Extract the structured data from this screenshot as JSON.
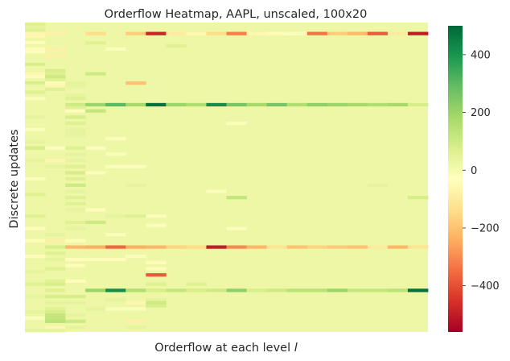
{
  "chart_data": {
    "type": "heatmap",
    "title": "Orderflow Heatmap, AAPL, unscaled, 100x20",
    "xlabel_text": "Orderflow at each level ",
    "xlabel_var": "l",
    "ylabel": "Discrete updates",
    "x_ticks_visible": false,
    "y_ticks_visible": false,
    "grid": false,
    "colormap": "RdYlGn",
    "colorbar": {
      "ticks": [
        400,
        200,
        0,
        -200,
        -400
      ],
      "tick_labels": [
        "400",
        "200",
        "0",
        "−200",
        "−400"
      ],
      "vmin": -560,
      "vmax": 500,
      "position": "right"
    },
    "grid_size": {
      "rows": 100,
      "cols": 20
    },
    "background_value": 20,
    "cells": [
      [
        0,
        0,
        60
      ],
      [
        1,
        0,
        40
      ],
      [
        2,
        0,
        60
      ],
      [
        3,
        0,
        -60
      ],
      [
        4,
        0,
        -60
      ],
      [
        5,
        0,
        20
      ],
      [
        6,
        0,
        -40
      ],
      [
        7,
        0,
        20
      ],
      [
        8,
        0,
        -40
      ],
      [
        9,
        0,
        -20
      ],
      [
        10,
        0,
        20
      ],
      [
        11,
        0,
        20
      ],
      [
        12,
        0,
        20
      ],
      [
        13,
        0,
        80
      ],
      [
        14,
        0,
        20
      ],
      [
        15,
        0,
        20
      ],
      [
        16,
        0,
        -60
      ],
      [
        17,
        0,
        -20
      ],
      [
        18,
        0,
        20
      ],
      [
        19,
        0,
        80
      ],
      [
        20,
        0,
        20
      ],
      [
        21,
        0,
        20
      ],
      [
        22,
        0,
        60
      ],
      [
        23,
        0,
        20
      ],
      [
        24,
        0,
        -20
      ],
      [
        30,
        0,
        40
      ],
      [
        34,
        0,
        -20
      ],
      [
        38,
        0,
        40
      ],
      [
        40,
        0,
        80
      ],
      [
        44,
        0,
        40
      ],
      [
        50,
        0,
        -20
      ],
      [
        55,
        0,
        60
      ],
      [
        58,
        0,
        20
      ],
      [
        62,
        0,
        60
      ],
      [
        66,
        0,
        -40
      ],
      [
        68,
        0,
        20
      ],
      [
        70,
        0,
        -40
      ],
      [
        72,
        0,
        20
      ],
      [
        75,
        0,
        -40
      ],
      [
        77,
        0,
        20
      ],
      [
        80,
        0,
        40
      ],
      [
        82,
        0,
        20
      ],
      [
        84,
        0,
        60
      ],
      [
        86,
        0,
        20
      ],
      [
        88,
        0,
        40
      ],
      [
        90,
        0,
        20
      ],
      [
        93,
        0,
        40
      ],
      [
        95,
        0,
        -20
      ],
      [
        97,
        0,
        20
      ],
      [
        99,
        0,
        40
      ],
      [
        3,
        1,
        -80
      ],
      [
        8,
        1,
        -80
      ],
      [
        10,
        1,
        -80
      ],
      [
        13,
        1,
        20
      ],
      [
        15,
        1,
        80
      ],
      [
        16,
        1,
        60
      ],
      [
        17,
        1,
        100
      ],
      [
        18,
        1,
        60
      ],
      [
        19,
        1,
        -20
      ],
      [
        20,
        1,
        -60
      ],
      [
        21,
        1,
        60
      ],
      [
        40,
        1,
        -20
      ],
      [
        44,
        1,
        -60
      ],
      [
        46,
        1,
        40
      ],
      [
        68,
        1,
        40
      ],
      [
        70,
        1,
        -80
      ],
      [
        72,
        1,
        80
      ],
      [
        74,
        1,
        60
      ],
      [
        76,
        1,
        40
      ],
      [
        79,
        1,
        60
      ],
      [
        81,
        1,
        20
      ],
      [
        83,
        1,
        60
      ],
      [
        84,
        1,
        80
      ],
      [
        86,
        1,
        60
      ],
      [
        88,
        1,
        80
      ],
      [
        90,
        1,
        40
      ],
      [
        92,
        1,
        60
      ],
      [
        93,
        1,
        80
      ],
      [
        94,
        1,
        120
      ],
      [
        95,
        1,
        120
      ],
      [
        96,
        1,
        140
      ],
      [
        98,
        1,
        -60
      ],
      [
        99,
        1,
        40
      ],
      [
        19,
        2,
        40
      ],
      [
        20,
        2,
        40
      ],
      [
        21,
        2,
        20
      ],
      [
        23,
        2,
        40
      ],
      [
        24,
        2,
        60
      ],
      [
        26,
        2,
        100
      ],
      [
        27,
        2,
        60
      ],
      [
        28,
        2,
        -40
      ],
      [
        30,
        2,
        80
      ],
      [
        32,
        2,
        60
      ],
      [
        34,
        2,
        40
      ],
      [
        35,
        2,
        40
      ],
      [
        36,
        2,
        40
      ],
      [
        40,
        2,
        60
      ],
      [
        42,
        2,
        40
      ],
      [
        44,
        2,
        40
      ],
      [
        46,
        2,
        60
      ],
      [
        48,
        2,
        80
      ],
      [
        50,
        2,
        60
      ],
      [
        52,
        2,
        100
      ],
      [
        54,
        2,
        40
      ],
      [
        56,
        2,
        60
      ],
      [
        58,
        2,
        60
      ],
      [
        60,
        2,
        40
      ],
      [
        62,
        2,
        20
      ],
      [
        64,
        2,
        60
      ],
      [
        66,
        2,
        40
      ],
      [
        70,
        2,
        -40
      ],
      [
        72,
        2,
        -220
      ],
      [
        74,
        2,
        20
      ],
      [
        76,
        2,
        -40
      ],
      [
        78,
        2,
        -40
      ],
      [
        83,
        2,
        -40
      ],
      [
        86,
        2,
        20
      ],
      [
        88,
        2,
        80
      ],
      [
        90,
        2,
        40
      ],
      [
        92,
        2,
        20
      ],
      [
        94,
        2,
        40
      ],
      [
        96,
        2,
        100
      ],
      [
        98,
        2,
        40
      ],
      [
        3,
        3,
        -140
      ],
      [
        6,
        3,
        60
      ],
      [
        16,
        3,
        100
      ],
      [
        26,
        3,
        200
      ],
      [
        28,
        3,
        120
      ],
      [
        40,
        3,
        -20
      ],
      [
        48,
        3,
        -20
      ],
      [
        60,
        3,
        -40
      ],
      [
        64,
        3,
        100
      ],
      [
        72,
        3,
        -240
      ],
      [
        76,
        3,
        -20
      ],
      [
        86,
        3,
        200
      ],
      [
        92,
        3,
        40
      ],
      [
        94,
        3,
        20
      ],
      [
        8,
        4,
        -20
      ],
      [
        26,
        4,
        300
      ],
      [
        32,
        4,
        20
      ],
      [
        37,
        4,
        -20
      ],
      [
        42,
        4,
        -20
      ],
      [
        46,
        4,
        -20
      ],
      [
        60,
        4,
        20
      ],
      [
        62,
        4,
        40
      ],
      [
        68,
        4,
        -20
      ],
      [
        72,
        4,
        -360
      ],
      [
        76,
        4,
        -40
      ],
      [
        86,
        4,
        420
      ],
      [
        89,
        4,
        40
      ],
      [
        92,
        4,
        -20
      ],
      [
        3,
        5,
        -180
      ],
      [
        19,
        5,
        -200
      ],
      [
        26,
        5,
        180
      ],
      [
        46,
        5,
        -20
      ],
      [
        48,
        5,
        20
      ],
      [
        52,
        5,
        40
      ],
      [
        58,
        5,
        20
      ],
      [
        62,
        5,
        60
      ],
      [
        72,
        5,
        -240
      ],
      [
        75,
        5,
        -20
      ],
      [
        86,
        5,
        160
      ],
      [
        90,
        5,
        -60
      ],
      [
        92,
        5,
        -20
      ],
      [
        94,
        5,
        20
      ],
      [
        96,
        5,
        -80
      ],
      [
        98,
        5,
        40
      ],
      [
        3,
        6,
        -480
      ],
      [
        26,
        6,
        480
      ],
      [
        46,
        6,
        20
      ],
      [
        62,
        6,
        -20
      ],
      [
        65,
        6,
        -20
      ],
      [
        72,
        6,
        -220
      ],
      [
        77,
        6,
        -40
      ],
      [
        79,
        6,
        -40
      ],
      [
        81,
        6,
        -380
      ],
      [
        84,
        6,
        60
      ],
      [
        86,
        6,
        80
      ],
      [
        89,
        6,
        40
      ],
      [
        90,
        6,
        100
      ],
      [
        91,
        6,
        80
      ],
      [
        94,
        6,
        20
      ],
      [
        3,
        7,
        -100
      ],
      [
        7,
        7,
        60
      ],
      [
        26,
        7,
        200
      ],
      [
        42,
        7,
        20
      ],
      [
        48,
        7,
        20
      ],
      [
        72,
        7,
        -160
      ],
      [
        86,
        7,
        120
      ],
      [
        94,
        7,
        20
      ],
      [
        3,
        8,
        -60
      ],
      [
        26,
        8,
        160
      ],
      [
        46,
        8,
        20
      ],
      [
        52,
        8,
        20
      ],
      [
        72,
        8,
        -140
      ],
      [
        84,
        8,
        60
      ],
      [
        86,
        8,
        80
      ],
      [
        3,
        9,
        -140
      ],
      [
        26,
        9,
        420
      ],
      [
        52,
        9,
        20
      ],
      [
        54,
        9,
        -20
      ],
      [
        60,
        9,
        20
      ],
      [
        68,
        9,
        20
      ],
      [
        72,
        9,
        -500
      ],
      [
        86,
        9,
        100
      ],
      [
        3,
        10,
        -320
      ],
      [
        26,
        10,
        260
      ],
      [
        32,
        10,
        -20
      ],
      [
        48,
        10,
        20
      ],
      [
        56,
        10,
        120
      ],
      [
        62,
        10,
        20
      ],
      [
        66,
        10,
        -20
      ],
      [
        72,
        10,
        -300
      ],
      [
        86,
        10,
        220
      ],
      [
        3,
        11,
        -60
      ],
      [
        26,
        11,
        180
      ],
      [
        42,
        11,
        20
      ],
      [
        60,
        11,
        20
      ],
      [
        68,
        11,
        20
      ],
      [
        72,
        11,
        -220
      ],
      [
        86,
        11,
        80
      ],
      [
        90,
        11,
        20
      ],
      [
        3,
        12,
        -40
      ],
      [
        26,
        12,
        260
      ],
      [
        38,
        12,
        20
      ],
      [
        72,
        12,
        -120
      ],
      [
        86,
        12,
        100
      ],
      [
        94,
        12,
        20
      ],
      [
        3,
        13,
        -20
      ],
      [
        26,
        13,
        160
      ],
      [
        44,
        13,
        20
      ],
      [
        72,
        13,
        -200
      ],
      [
        86,
        13,
        140
      ],
      [
        3,
        14,
        -340
      ],
      [
        26,
        14,
        220
      ],
      [
        48,
        14,
        20
      ],
      [
        52,
        14,
        20
      ],
      [
        58,
        14,
        20
      ],
      [
        72,
        14,
        -160
      ],
      [
        86,
        14,
        140
      ],
      [
        94,
        14,
        20
      ],
      [
        3,
        15,
        -180
      ],
      [
        26,
        15,
        200
      ],
      [
        42,
        15,
        20
      ],
      [
        72,
        15,
        -180
      ],
      [
        86,
        15,
        200
      ],
      [
        3,
        16,
        -220
      ],
      [
        26,
        16,
        180
      ],
      [
        72,
        16,
        -200
      ],
      [
        86,
        16,
        120
      ],
      [
        3,
        17,
        -380
      ],
      [
        26,
        17,
        160
      ],
      [
        52,
        17,
        40
      ],
      [
        72,
        17,
        -100
      ],
      [
        86,
        17,
        120
      ],
      [
        3,
        18,
        -100
      ],
      [
        26,
        18,
        180
      ],
      [
        72,
        18,
        -220
      ],
      [
        86,
        18,
        140
      ],
      [
        3,
        19,
        -500
      ],
      [
        26,
        19,
        80
      ],
      [
        56,
        19,
        80
      ],
      [
        72,
        19,
        -120
      ],
      [
        86,
        19,
        480
      ]
    ]
  }
}
